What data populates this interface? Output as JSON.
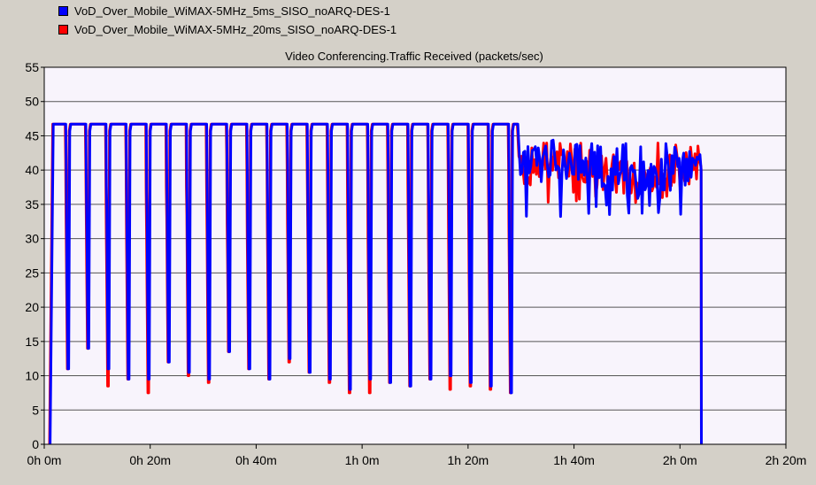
{
  "legend": [
    {
      "label": "VoD_Over_Mobile_WiMAX-5MHz_5ms_SISO_noARQ-DES-1",
      "color": "#0000ff"
    },
    {
      "label": "VoD_Over_Mobile_WiMAX-5MHz_20ms_SISO_noARQ-DES-1",
      "color": "#ff0000"
    }
  ],
  "chart_data": {
    "type": "line",
    "title": "Video Conferencing.Traffic Received (packets/sec)",
    "xlabel": "",
    "ylabel": "",
    "xlim_min": [
      0,
      140
    ],
    "ylim": [
      0,
      55
    ],
    "yticks": [
      0,
      5,
      10,
      15,
      20,
      25,
      30,
      35,
      40,
      45,
      50,
      55
    ],
    "xticks": [
      {
        "min": 0,
        "label": "0h 0m"
      },
      {
        "min": 20,
        "label": "0h 20m"
      },
      {
        "min": 40,
        "label": "0h 40m"
      },
      {
        "min": 60,
        "label": "1h 0m"
      },
      {
        "min": 80,
        "label": "1h 20m"
      },
      {
        "min": 100,
        "label": "1h 40m"
      },
      {
        "min": 120,
        "label": "2h 0m"
      },
      {
        "min": 140,
        "label": "2h 20m"
      }
    ],
    "grid": true,
    "plot_background": "#f8f4fc",
    "series": [
      {
        "name": "VoD_Over_Mobile_WiMAX-5MHz_5ms_SISO_noARQ-DES-1",
        "color": "#0000ff",
        "description": "periodic plateaus at ~46.7 pkt/s dipping to ~8-14 from ~1 min to ~88 min, then noisy ~37-43 until ~124 min, then drops to 0",
        "plateau": 46.7,
        "period_min": 3.8,
        "dip_minima": [
          11,
          14,
          11,
          9.5,
          9.5,
          12,
          10.5,
          9.5,
          13.5,
          11,
          9.5,
          12.5,
          10.5,
          9.5,
          8,
          9.5,
          9,
          8.5,
          9.5,
          10,
          9,
          8.5,
          7.5
        ],
        "noisy_mean": 40,
        "noisy_range": [
          33,
          44
        ],
        "end_min": 124
      },
      {
        "name": "VoD_Over_Mobile_WiMAX-5MHz_20ms_SISO_noARQ-DES-1",
        "color": "#ff0000",
        "description": "similar pattern to blue series with slightly deeper dips",
        "plateau": 46.7,
        "period_min": 3.8,
        "dip_minima": [
          11,
          14,
          8.5,
          9.5,
          7.5,
          12,
          10,
          9,
          13.5,
          11,
          9.5,
          12,
          10.5,
          9,
          7.5,
          7.5,
          9,
          8.5,
          9.5,
          8,
          8.5,
          8,
          7.5
        ],
        "noisy_mean": 40,
        "noisy_range": [
          35,
          44
        ],
        "end_min": 124
      }
    ]
  }
}
